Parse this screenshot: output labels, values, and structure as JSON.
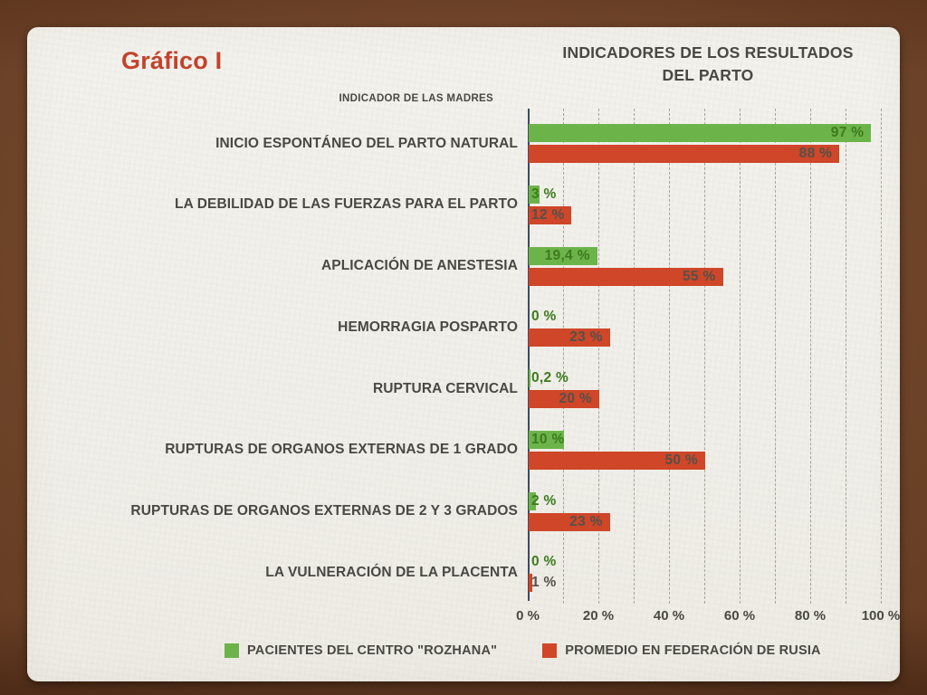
{
  "slide": {
    "title": "Gráfico I"
  },
  "chart_data": {
    "type": "bar",
    "orientation": "horizontal",
    "title": "INDICADORES DE LOS RESULTADOS DEL PARTO",
    "axis_title": "INDICADOR DE LAS MADRES",
    "categories": [
      "INICIO ESPONTÁNEO DEL PARTO NATURAL",
      "LA DEBILIDAD DE LAS FUERZAS PARA EL PARTO",
      "APLICACIÓN DE ANESTESIA",
      "HEMORRAGIA POSPARTO",
      "RUPTURA CERVICAL",
      "RUPTURAS DE ORGANOS EXTERNAS DE 1 GRADO",
      "RUPTURAS DE ORGANOS EXTERNAS DE 2 Y 3 GRADOS",
      "LA VULNERACIÓN DE LA PLACENTA"
    ],
    "series": [
      {
        "name": "PACIENTES DEL CENTRO \"ROZHANA\"",
        "color": "#6cb44a",
        "label_color": "#3d7a1d",
        "values": [
          97,
          3,
          19.4,
          0,
          0.2,
          10,
          2,
          0
        ],
        "labels": [
          "97 %",
          "3 %",
          "19,4 %",
          "0 %",
          "0,2 %",
          "10 %",
          "2 %",
          "0 %"
        ]
      },
      {
        "name": "PROMEDIO EN FEDERACIÓN DE RUSIA",
        "color": "#cf4628",
        "label_color": "#55514a",
        "values": [
          88,
          12,
          55,
          23,
          20,
          50,
          23,
          1
        ],
        "labels": [
          "88 %",
          "12 %",
          "55 %",
          "23 %",
          "20 %",
          "50 %",
          "23 %",
          "1 %"
        ]
      }
    ],
    "x_ticks": [
      "0 %",
      "20 %",
      "40 %",
      "60 %",
      "80 %",
      "100 %"
    ],
    "xlim": [
      0,
      100
    ],
    "gridline_step": 10,
    "grid": "dashed-vertical",
    "legend_position": "bottom",
    "colors": {
      "slide_bg": "#f1efe9",
      "frame_bg": "#7a4829",
      "accent_title": "#c2432c",
      "text": "#4a4843",
      "axis_line": "#3e4a63",
      "gridline": "#a8a49b"
    }
  }
}
